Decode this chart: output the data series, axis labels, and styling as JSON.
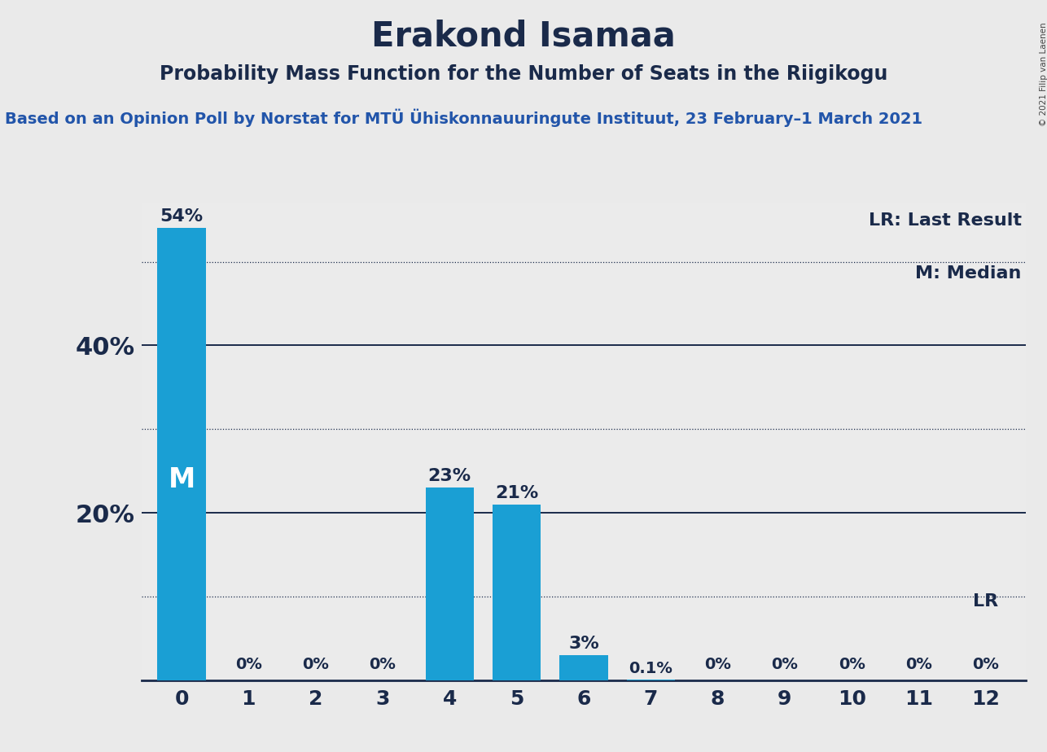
{
  "title": "Erakond Isamaa",
  "subtitle": "Probability Mass Function for the Number of Seats in the Riigikogu",
  "source_line": "Based on an Opinion Poll by Norstat for MTU Ühiskonnauuringute Instituut, 23 February–1 March 2021",
  "source_line_display": "Based on an Opinion Poll by Norstat for MTÜ Ühiskonnauuringute Instituut, 23 February–1 March 2021",
  "copyright": "© 2021 Filip van Laenen",
  "categories": [
    0,
    1,
    2,
    3,
    4,
    5,
    6,
    7,
    8,
    9,
    10,
    11,
    12
  ],
  "values": [
    54,
    0,
    0,
    0,
    23,
    21,
    3,
    0.1,
    0,
    0,
    0,
    0,
    0
  ],
  "bar_labels": [
    "54%",
    "0%",
    "0%",
    "0%",
    "23%",
    "21%",
    "3%",
    "0.1%",
    "0%",
    "0%",
    "0%",
    "0%",
    "0%"
  ],
  "bar_color": "#1a9fd4",
  "bg_color": "#eaeaea",
  "plot_bg_color": "#ebebeb",
  "black_panel": "#111111",
  "median_bar_idx": 0,
  "median_label": "M",
  "lr_bar_idx": 12,
  "lr_label": "LR",
  "legend_lr": "LR: Last Result",
  "legend_m": "M: Median",
  "ytick_values": [
    20,
    40
  ],
  "ytick_labels": [
    "20%",
    "40%"
  ],
  "solid_lines": [
    20,
    40
  ],
  "dotted_lines": [
    10,
    30,
    50
  ],
  "ylim": [
    0,
    57
  ],
  "xlim": [
    -0.6,
    12.6
  ],
  "title_fontsize": 30,
  "subtitle_fontsize": 17,
  "source_fontsize": 14,
  "label_fontsize_large": 16,
  "label_fontsize_small": 14,
  "tick_fontsize": 18,
  "ytick_fontsize": 22,
  "legend_fontsize": 16,
  "median_fontsize": 24
}
